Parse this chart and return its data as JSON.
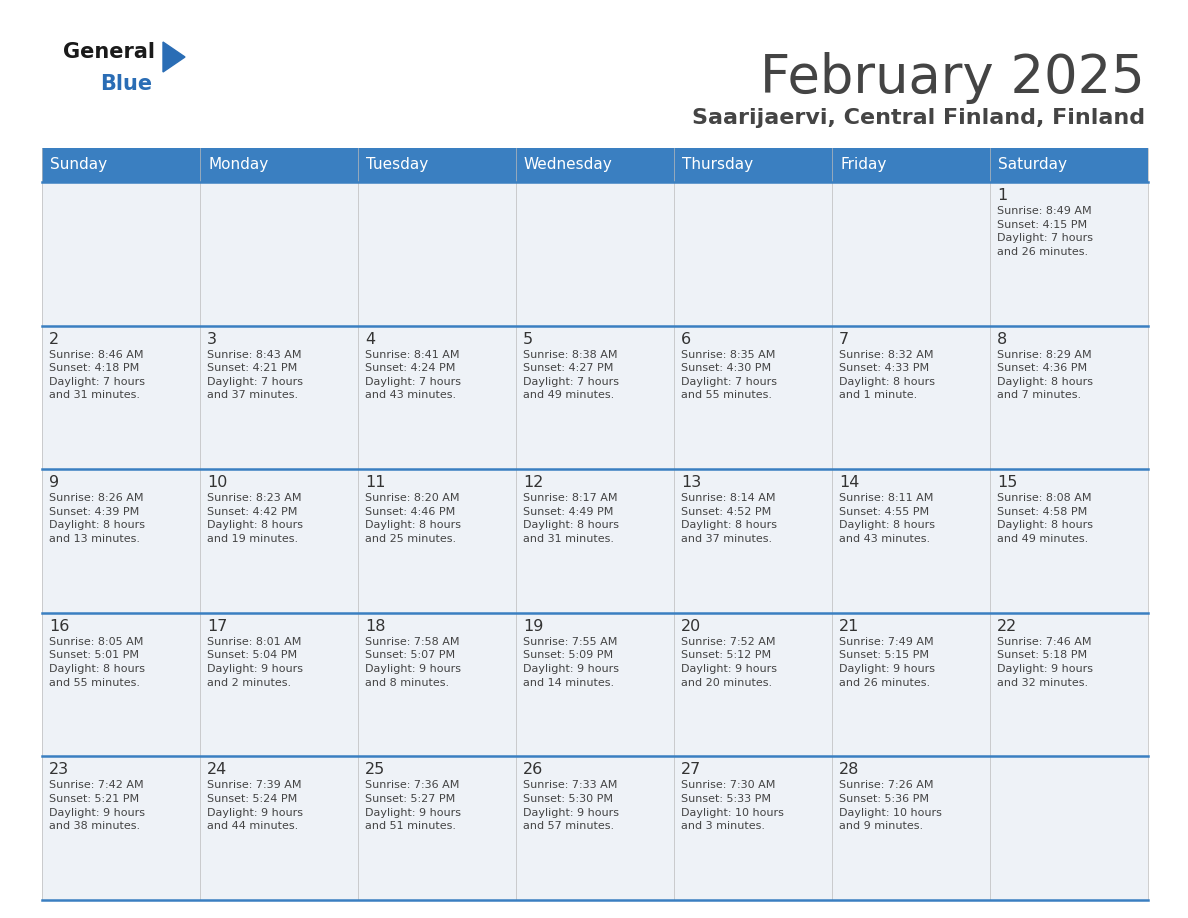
{
  "title": "February 2025",
  "subtitle": "Saarijaervi, Central Finland, Finland",
  "header_color": "#3a7fc1",
  "header_text_color": "#ffffff",
  "cell_bg_even": "#eef2f7",
  "cell_bg_odd": "#eef2f7",
  "border_color": "#3a7fc1",
  "day_headers": [
    "Sunday",
    "Monday",
    "Tuesday",
    "Wednesday",
    "Thursday",
    "Friday",
    "Saturday"
  ],
  "text_color": "#444444",
  "day_num_color": "#333333",
  "weeks": [
    [
      {
        "day": "",
        "info": ""
      },
      {
        "day": "",
        "info": ""
      },
      {
        "day": "",
        "info": ""
      },
      {
        "day": "",
        "info": ""
      },
      {
        "day": "",
        "info": ""
      },
      {
        "day": "",
        "info": ""
      },
      {
        "day": "1",
        "info": "Sunrise: 8:49 AM\nSunset: 4:15 PM\nDaylight: 7 hours\nand 26 minutes."
      }
    ],
    [
      {
        "day": "2",
        "info": "Sunrise: 8:46 AM\nSunset: 4:18 PM\nDaylight: 7 hours\nand 31 minutes."
      },
      {
        "day": "3",
        "info": "Sunrise: 8:43 AM\nSunset: 4:21 PM\nDaylight: 7 hours\nand 37 minutes."
      },
      {
        "day": "4",
        "info": "Sunrise: 8:41 AM\nSunset: 4:24 PM\nDaylight: 7 hours\nand 43 minutes."
      },
      {
        "day": "5",
        "info": "Sunrise: 8:38 AM\nSunset: 4:27 PM\nDaylight: 7 hours\nand 49 minutes."
      },
      {
        "day": "6",
        "info": "Sunrise: 8:35 AM\nSunset: 4:30 PM\nDaylight: 7 hours\nand 55 minutes."
      },
      {
        "day": "7",
        "info": "Sunrise: 8:32 AM\nSunset: 4:33 PM\nDaylight: 8 hours\nand 1 minute."
      },
      {
        "day": "8",
        "info": "Sunrise: 8:29 AM\nSunset: 4:36 PM\nDaylight: 8 hours\nand 7 minutes."
      }
    ],
    [
      {
        "day": "9",
        "info": "Sunrise: 8:26 AM\nSunset: 4:39 PM\nDaylight: 8 hours\nand 13 minutes."
      },
      {
        "day": "10",
        "info": "Sunrise: 8:23 AM\nSunset: 4:42 PM\nDaylight: 8 hours\nand 19 minutes."
      },
      {
        "day": "11",
        "info": "Sunrise: 8:20 AM\nSunset: 4:46 PM\nDaylight: 8 hours\nand 25 minutes."
      },
      {
        "day": "12",
        "info": "Sunrise: 8:17 AM\nSunset: 4:49 PM\nDaylight: 8 hours\nand 31 minutes."
      },
      {
        "day": "13",
        "info": "Sunrise: 8:14 AM\nSunset: 4:52 PM\nDaylight: 8 hours\nand 37 minutes."
      },
      {
        "day": "14",
        "info": "Sunrise: 8:11 AM\nSunset: 4:55 PM\nDaylight: 8 hours\nand 43 minutes."
      },
      {
        "day": "15",
        "info": "Sunrise: 8:08 AM\nSunset: 4:58 PM\nDaylight: 8 hours\nand 49 minutes."
      }
    ],
    [
      {
        "day": "16",
        "info": "Sunrise: 8:05 AM\nSunset: 5:01 PM\nDaylight: 8 hours\nand 55 minutes."
      },
      {
        "day": "17",
        "info": "Sunrise: 8:01 AM\nSunset: 5:04 PM\nDaylight: 9 hours\nand 2 minutes."
      },
      {
        "day": "18",
        "info": "Sunrise: 7:58 AM\nSunset: 5:07 PM\nDaylight: 9 hours\nand 8 minutes."
      },
      {
        "day": "19",
        "info": "Sunrise: 7:55 AM\nSunset: 5:09 PM\nDaylight: 9 hours\nand 14 minutes."
      },
      {
        "day": "20",
        "info": "Sunrise: 7:52 AM\nSunset: 5:12 PM\nDaylight: 9 hours\nand 20 minutes."
      },
      {
        "day": "21",
        "info": "Sunrise: 7:49 AM\nSunset: 5:15 PM\nDaylight: 9 hours\nand 26 minutes."
      },
      {
        "day": "22",
        "info": "Sunrise: 7:46 AM\nSunset: 5:18 PM\nDaylight: 9 hours\nand 32 minutes."
      }
    ],
    [
      {
        "day": "23",
        "info": "Sunrise: 7:42 AM\nSunset: 5:21 PM\nDaylight: 9 hours\nand 38 minutes."
      },
      {
        "day": "24",
        "info": "Sunrise: 7:39 AM\nSunset: 5:24 PM\nDaylight: 9 hours\nand 44 minutes."
      },
      {
        "day": "25",
        "info": "Sunrise: 7:36 AM\nSunset: 5:27 PM\nDaylight: 9 hours\nand 51 minutes."
      },
      {
        "day": "26",
        "info": "Sunrise: 7:33 AM\nSunset: 5:30 PM\nDaylight: 9 hours\nand 57 minutes."
      },
      {
        "day": "27",
        "info": "Sunrise: 7:30 AM\nSunset: 5:33 PM\nDaylight: 10 hours\nand 3 minutes."
      },
      {
        "day": "28",
        "info": "Sunrise: 7:26 AM\nSunset: 5:36 PM\nDaylight: 10 hours\nand 9 minutes."
      },
      {
        "day": "",
        "info": ""
      }
    ]
  ],
  "logo_general_color": "#1a1a1a",
  "logo_blue_color": "#2a6db5",
  "logo_triangle_color": "#2a6db5"
}
